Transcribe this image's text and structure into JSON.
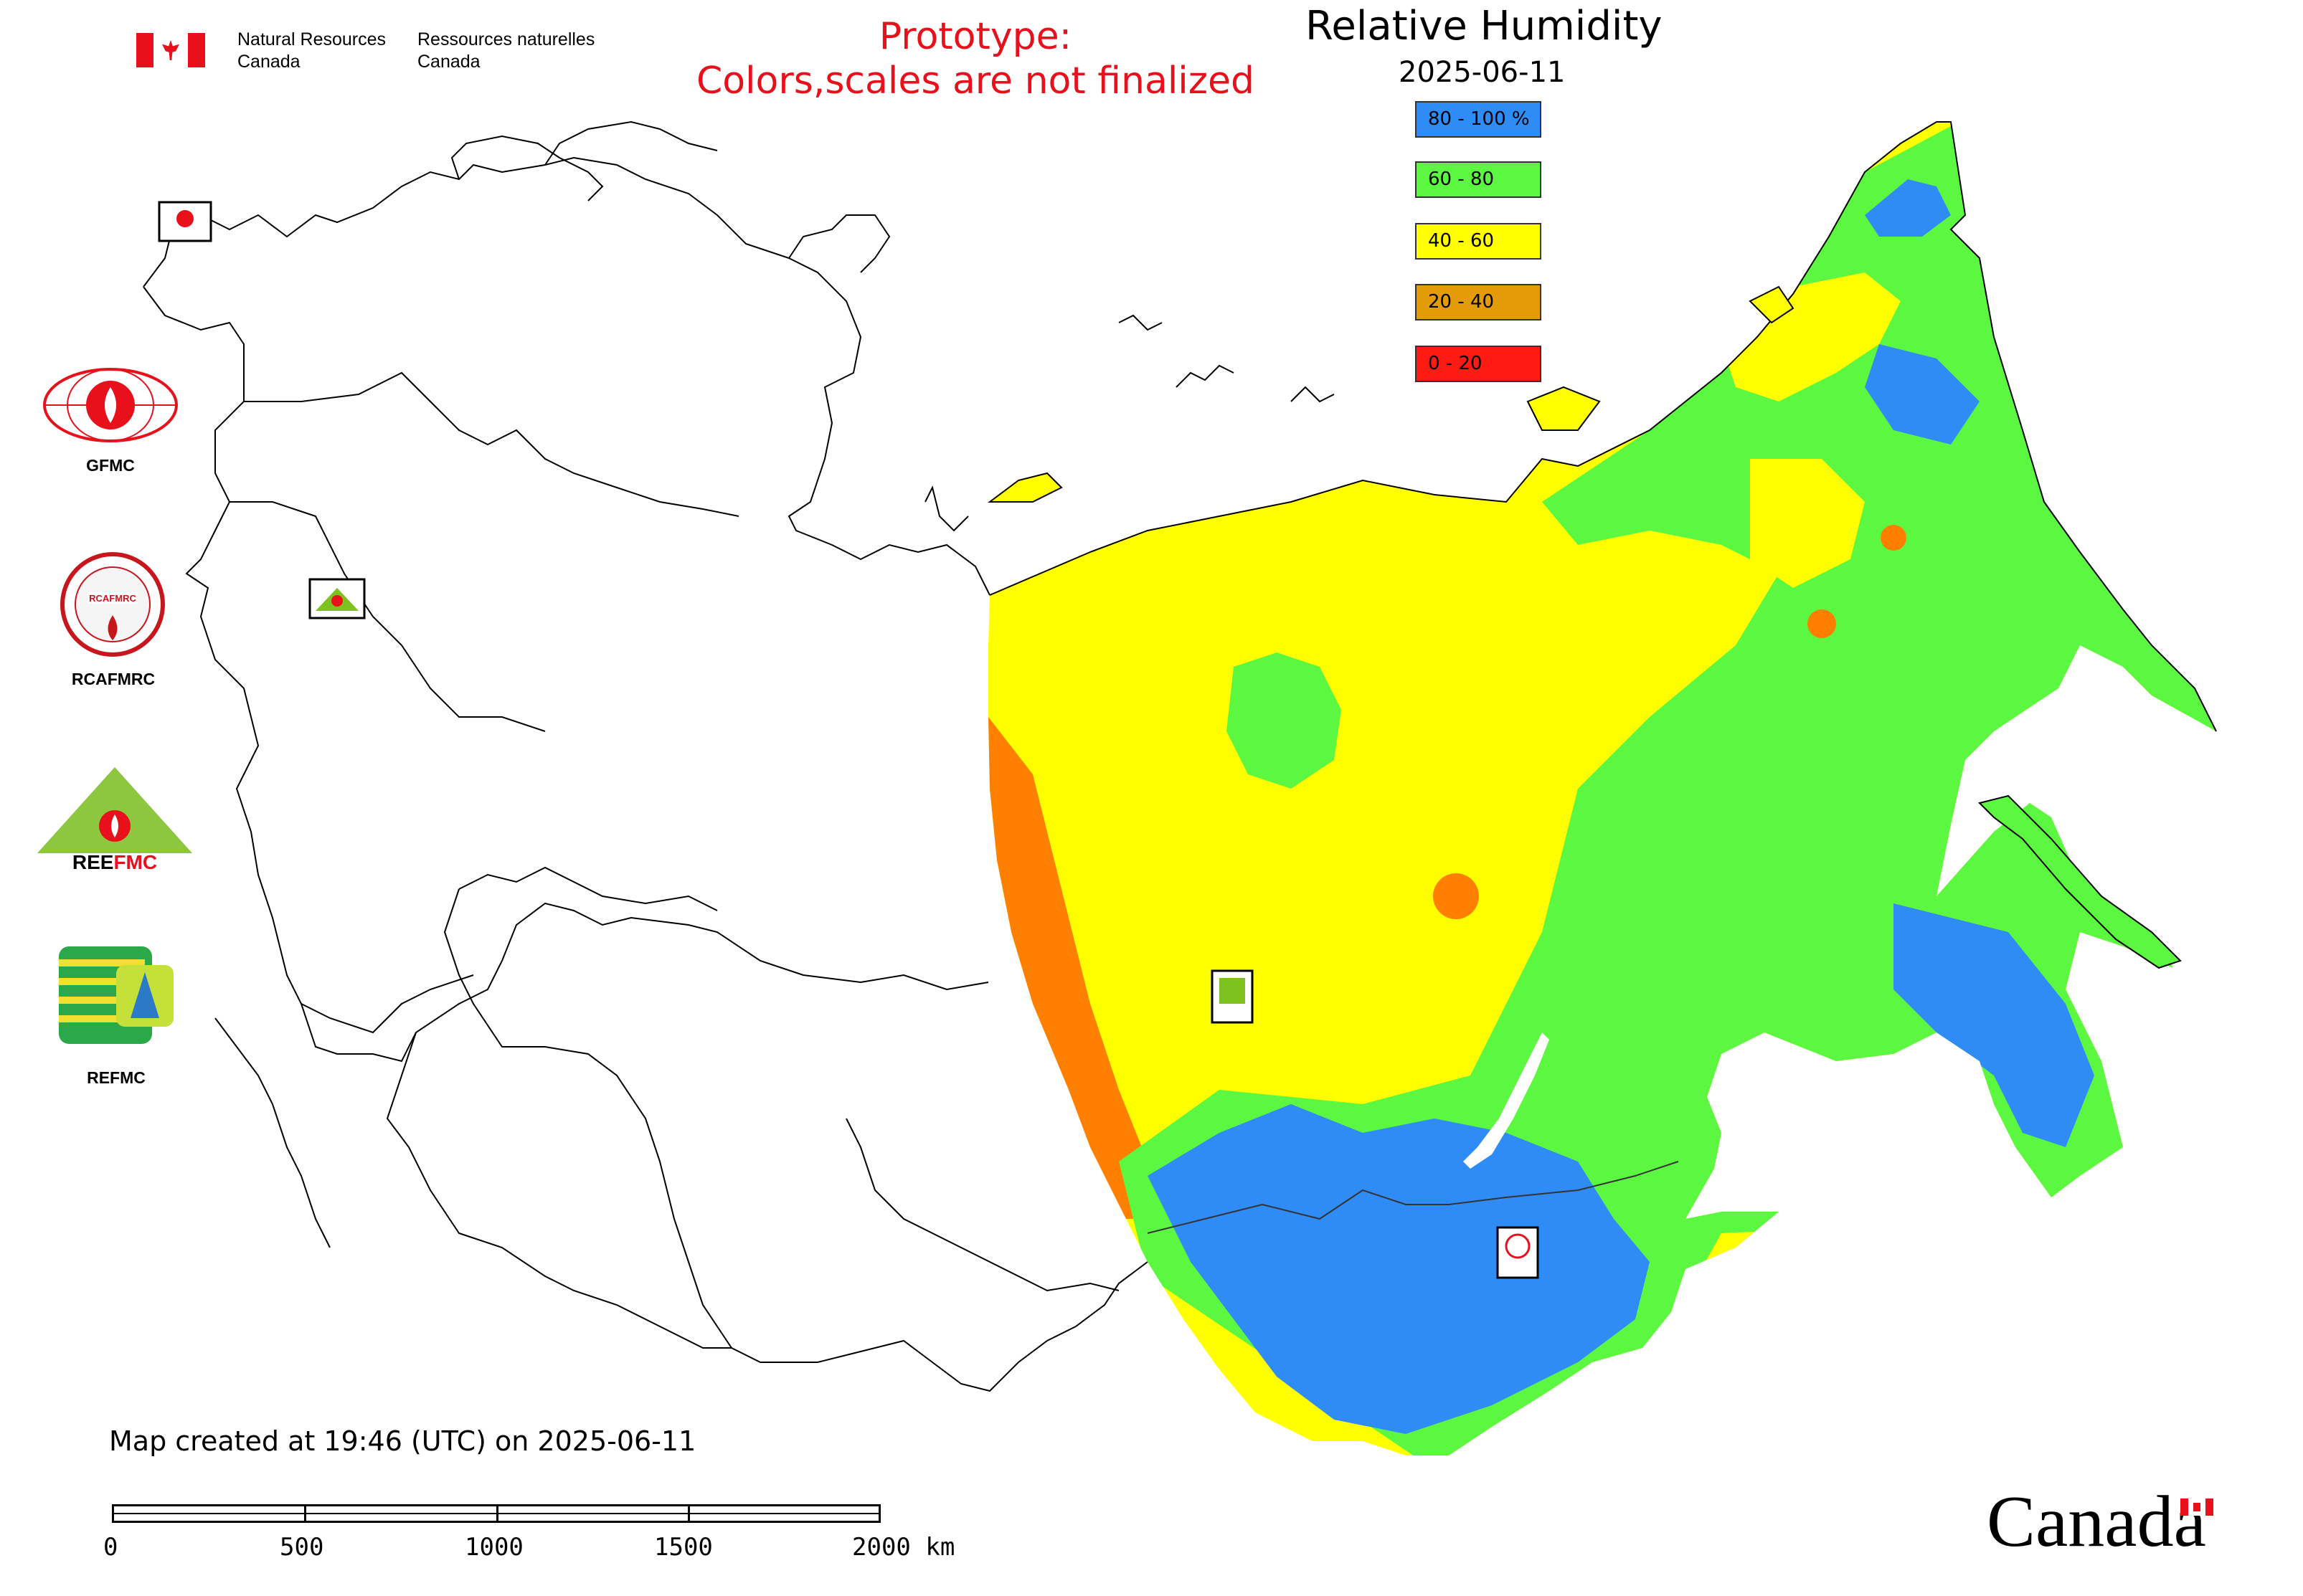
{
  "header": {
    "agency_en": [
      "Natural Resources",
      "Canada"
    ],
    "agency_fr": [
      "Ressources naturelles",
      "Canada"
    ],
    "prototype_line1": "Prototype:",
    "prototype_line2": "Colors,scales are not finalized"
  },
  "map": {
    "title": "Relative Humidity",
    "date": "2025-06-11",
    "legend": [
      {
        "label": "80 - 100 %",
        "color": "#2f8cf7"
      },
      {
        "label": "60 - 80",
        "color": "#5cf740"
      },
      {
        "label": "40 - 60",
        "color": "#ffff00"
      },
      {
        "label": "20 - 40",
        "color": "#e39b07"
      },
      {
        "label": "0 - 20",
        "color": "#ff1a14"
      }
    ],
    "footer_note": "Map created at 19:46 (UTC) on 2025-06-11",
    "scale_labels": [
      "0",
      "500",
      "1000",
      "1500",
      "2000 km"
    ],
    "fill_colors": {
      "orange_band": "#ff7f00"
    }
  },
  "logos": [
    {
      "name": "GFMC",
      "label": "GFMC"
    },
    {
      "name": "RCAFMRC",
      "label": "RCAFMRC"
    },
    {
      "name": "REEFMC",
      "label": "REEFMC"
    },
    {
      "name": "REFMC",
      "label": "REFMC"
    }
  ],
  "wordmark": "Canada"
}
